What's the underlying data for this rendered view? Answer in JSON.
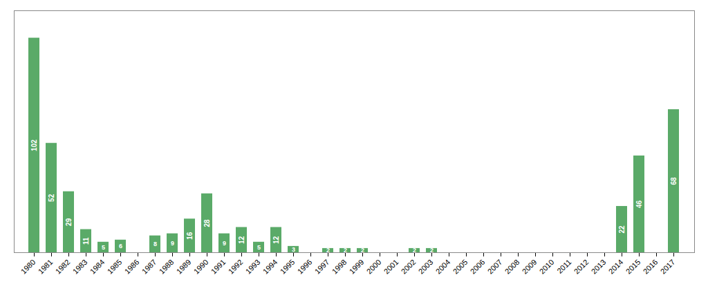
{
  "chart_data": {
    "type": "bar",
    "categories": [
      "1980",
      "1981",
      "1982",
      "1983",
      "1984",
      "1985",
      "1986",
      "1987",
      "1988",
      "1989",
      "1990",
      "1991",
      "1992",
      "1993",
      "1994",
      "1995",
      "1996",
      "1997",
      "1998",
      "1999",
      "2000",
      "2001",
      "2002",
      "2003",
      "2004",
      "2005",
      "2006",
      "2007",
      "2008",
      "2009",
      "2010",
      "2011",
      "2012",
      "2013",
      "2014",
      "2015",
      "2016",
      "2017"
    ],
    "values": [
      102,
      52,
      29,
      11,
      5,
      6,
      0,
      8,
      9,
      16,
      28,
      9,
      12,
      5,
      12,
      3,
      0,
      2,
      2,
      2,
      0,
      0,
      2,
      2,
      0,
      0,
      0,
      0,
      0,
      0,
      0,
      0,
      0,
      0,
      22,
      46,
      0,
      68
    ],
    "color": "#5aaa68",
    "ylim": [
      0,
      115
    ],
    "data_labels": true,
    "tick_labels": "x"
  }
}
